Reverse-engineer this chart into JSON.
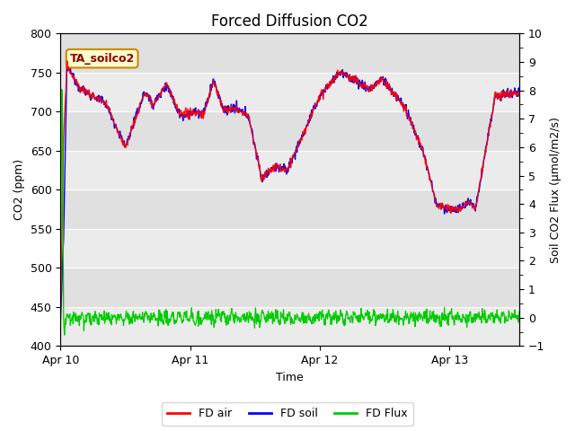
{
  "title": "Forced Diffusion CO2",
  "ylabel_left": "CO2 (ppm)",
  "ylabel_right": "Soil CO2 Flux (μmol/m2/s)",
  "xlabel": "Time",
  "ylim_left": [
    400,
    800
  ],
  "ylim_right": [
    -1.0,
    10.0
  ],
  "yticks_left": [
    400,
    450,
    500,
    550,
    600,
    650,
    700,
    750,
    800
  ],
  "yticks_right": [
    -1.0,
    0.0,
    1.0,
    2.0,
    3.0,
    4.0,
    5.0,
    6.0,
    7.0,
    8.0,
    9.0,
    10.0
  ],
  "xtick_labels": [
    "Apr 10",
    "Apr 11",
    "Apr 12",
    "Apr 13"
  ],
  "annotation_text": "TA_soilco2",
  "bg_color": "#e0e0e0",
  "line_colors": {
    "fd_air": "#ff0000",
    "fd_soil": "#0000ff",
    "fd_flux": "#00cc00"
  },
  "legend_labels": [
    "FD air",
    "FD soil",
    "FD Flux"
  ],
  "title_fontsize": 12,
  "axis_label_fontsize": 9,
  "tick_fontsize": 9,
  "figsize": [
    6.4,
    4.8
  ],
  "dpi": 100
}
